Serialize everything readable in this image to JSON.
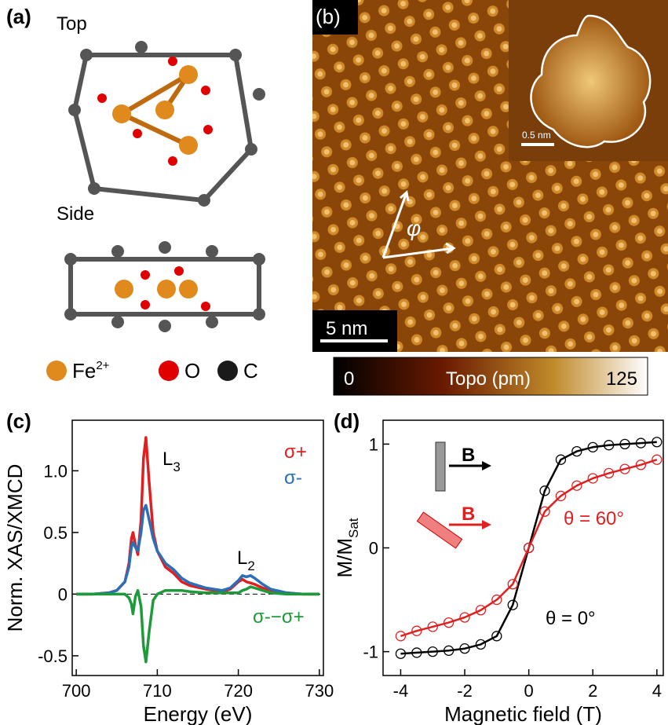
{
  "panels": {
    "a": {
      "label": "(a)",
      "top": "Top",
      "side": "Side",
      "legend": [
        {
          "name": "Fe",
          "sup": "2+",
          "color": "#e08a1e"
        },
        {
          "name": "O",
          "color": "#e00000"
        },
        {
          "name": "C",
          "color": "#1a1a1a"
        }
      ]
    },
    "b": {
      "label": "(b)",
      "angle": "φ",
      "scale": "5 nm",
      "inset_scale": "0.5 nm",
      "colorbar": {
        "min": 0,
        "label": "Topo (pm)",
        "max": 125
      }
    }
  },
  "chart_data": [
    {
      "type": "line",
      "panel": "(c)",
      "xlabel": "Energy (eV)",
      "ylabel": "Norm. XAS/XMCD",
      "zero_line": true,
      "annotations": [
        {
          "text": "L",
          "sub": "3"
        },
        {
          "text": "L",
          "sub": "2"
        }
      ],
      "x": [
        700,
        702,
        704,
        705,
        706,
        706.5,
        706.8,
        707,
        707.3,
        707.6,
        708,
        708.3,
        708.6,
        709,
        709.5,
        710,
        711,
        712,
        713,
        714,
        716,
        718,
        719,
        720,
        720.5,
        721,
        721.5,
        722,
        723,
        724,
        726,
        728,
        730
      ],
      "series": [
        {
          "name": "σ+",
          "color": "#e02020",
          "values": [
            0,
            0,
            0.01,
            0.03,
            0.1,
            0.25,
            0.45,
            0.5,
            0.4,
            0.32,
            0.6,
            1.1,
            1.27,
            0.9,
            0.5,
            0.35,
            0.22,
            0.17,
            0.1,
            0.07,
            0.04,
            0.02,
            0.04,
            0.1,
            0.12,
            0.1,
            0.09,
            0.08,
            0.05,
            0.03,
            0.01,
            0,
            0
          ]
        },
        {
          "name": "σ-",
          "color": "#2a6fb8",
          "values": [
            0,
            0,
            0.01,
            0.03,
            0.1,
            0.22,
            0.38,
            0.42,
            0.38,
            0.35,
            0.5,
            0.68,
            0.72,
            0.6,
            0.45,
            0.35,
            0.25,
            0.2,
            0.13,
            0.09,
            0.05,
            0.03,
            0.05,
            0.11,
            0.15,
            0.14,
            0.15,
            0.13,
            0.08,
            0.04,
            0.01,
            0,
            0
          ]
        },
        {
          "name": "σ-−σ+",
          "color": "#1f9a3a",
          "values": [
            0,
            0,
            0,
            0,
            0,
            -0.03,
            -0.08,
            -0.16,
            -0.02,
            0.03,
            -0.1,
            -0.42,
            -0.55,
            -0.3,
            -0.05,
            0,
            0.03,
            0.03,
            0.03,
            0.02,
            0.01,
            0.01,
            0.01,
            0.01,
            0.03,
            0.04,
            0.06,
            0.05,
            0.03,
            0.01,
            0,
            0,
            0
          ]
        }
      ],
      "xlim": [
        699.5,
        730.5
      ],
      "xticks": [
        700,
        710,
        720,
        730
      ],
      "ylim": [
        -0.66,
        1.41
      ],
      "yticks": [
        -0.5,
        0,
        0.5,
        {
          "value": 1,
          "label": "1.0"
        }
      ]
    },
    {
      "type": "line",
      "panel": "(d)",
      "xlabel": "Magnetic field (T)",
      "ylabel": "M/M",
      "ylabel_sub": "Sat",
      "markers": true,
      "annotations": [
        {
          "text": "B",
          "color": "#000000"
        },
        {
          "text": "B",
          "color": "#e02020"
        }
      ],
      "x": [
        -4,
        -3.5,
        -3,
        -2.5,
        -2,
        -1.5,
        -1,
        -0.5,
        0,
        0.5,
        1,
        1.5,
        2,
        2.5,
        3,
        3.5,
        4
      ],
      "series": [
        {
          "name": "θ = 0°",
          "color": "#000000",
          "values": [
            -1.02,
            -1.01,
            -1,
            -0.99,
            -0.97,
            -0.93,
            -0.85,
            -0.55,
            0,
            0.55,
            0.85,
            0.93,
            0.97,
            0.99,
            1,
            1.01,
            1.02
          ]
        },
        {
          "name": "θ = 60°",
          "color": "#e02020",
          "values": [
            -0.85,
            -0.8,
            -0.76,
            -0.72,
            -0.67,
            -0.6,
            -0.5,
            -0.35,
            0,
            0.35,
            0.5,
            0.6,
            0.67,
            0.72,
            0.76,
            0.8,
            0.85
          ]
        }
      ],
      "xlim": [
        -4.55,
        4.2
      ],
      "xticks": [
        -4,
        -2,
        0,
        2,
        4
      ],
      "ylim": [
        -1.23,
        1.23
      ],
      "yticks": [
        -1,
        0,
        1
      ]
    }
  ]
}
